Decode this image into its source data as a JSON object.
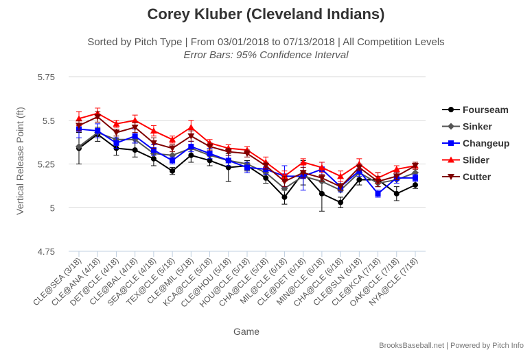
{
  "title": "Corey Kluber (Cleveland Indians)",
  "subtitle_line1": "Sorted by Pitch Type | From 03/01/2018 to 07/13/2018 | All Competition Levels",
  "subtitle_line2": "Error Bars: 95% Confidence Interval",
  "credit": "BrooksBaseball.net | Powered by Pitch Info",
  "chart_data": {
    "type": "line",
    "title": "Corey Kluber (Cleveland Indians)",
    "xlabel": "Game",
    "ylabel": "Vertical Release Point (ft)",
    "ylim": [
      4.75,
      5.75
    ],
    "yticks": [
      "4.75",
      "5",
      "5.25",
      "5.5",
      "5.75"
    ],
    "ytick_values": [
      4.75,
      5.0,
      5.25,
      5.5,
      5.75
    ],
    "grid": "horizontal",
    "legend_position": "right",
    "categories": [
      "CLE@SEA (3/18)",
      "CLE@ANA (4/18)",
      "DET@CLE (4/18)",
      "CLE@BAL (4/18)",
      "SEA@CLE (4/18)",
      "TEX@CLE (5/18)",
      "CLE@MIL (5/18)",
      "KCA@CLE (5/18)",
      "CLE@HOU (5/18)",
      "HOU@CLE (5/18)",
      "CHA@CLE (5/18)",
      "MIL@CLE (6/18)",
      "CLE@DET (6/18)",
      "MIN@CLE (6/18)",
      "CHA@CLE (6/18)",
      "CLE@SLN (6/18)",
      "CLE@KCA (7/18)",
      "OAK@CLE (7/18)",
      "NYA@CLE (7/18)"
    ],
    "series": [
      {
        "name": "Fourseam",
        "color": "#000000",
        "marker": "circle",
        "values": [
          5.34,
          5.42,
          5.34,
          5.33,
          5.28,
          5.21,
          5.3,
          5.27,
          5.23,
          5.24,
          5.17,
          5.06,
          5.2,
          5.08,
          5.03,
          5.16,
          5.16,
          5.08,
          5.13
        ],
        "err": [
          0.09,
          0.04,
          0.04,
          0.04,
          0.04,
          0.02,
          0.04,
          0.03,
          0.08,
          0.03,
          0.03,
          0.04,
          0.07,
          0.1,
          0.03,
          0.03,
          0.04,
          0.04,
          0.02
        ]
      },
      {
        "name": "Sinker",
        "color": "#555555",
        "marker": "diamond",
        "values": [
          5.35,
          5.43,
          5.39,
          5.39,
          5.31,
          5.3,
          5.34,
          5.3,
          5.27,
          5.25,
          5.2,
          5.11,
          5.18,
          5.15,
          5.1,
          5.2,
          5.14,
          5.16,
          5.2
        ]
      },
      {
        "name": "Changeup",
        "color": "#0000ff",
        "marker": "square",
        "values": [
          5.45,
          5.44,
          5.37,
          5.41,
          5.33,
          5.27,
          5.35,
          5.31,
          5.27,
          5.23,
          5.22,
          5.18,
          5.18,
          5.22,
          5.12,
          5.21,
          5.08,
          5.17,
          5.17
        ],
        "err": [
          0.05,
          0.04,
          0.03,
          0.04,
          0.03,
          0.02,
          0.03,
          0.03,
          0.03,
          0.03,
          0.03,
          0.06,
          0.08,
          0.04,
          0.03,
          0.03,
          0.02,
          0.03,
          0.02
        ]
      },
      {
        "name": "Slider",
        "color": "#ff0000",
        "marker": "triangle",
        "values": [
          5.51,
          5.54,
          5.48,
          5.5,
          5.44,
          5.39,
          5.46,
          5.37,
          5.34,
          5.33,
          5.26,
          5.18,
          5.26,
          5.23,
          5.18,
          5.25,
          5.17,
          5.22,
          5.24
        ],
        "err": [
          0.04,
          0.03,
          0.02,
          0.03,
          0.03,
          0.02,
          0.04,
          0.02,
          0.02,
          0.02,
          0.03,
          0.03,
          0.02,
          0.03,
          0.03,
          0.03,
          0.03,
          0.02,
          0.02
        ]
      },
      {
        "name": "Cutter",
        "color": "#800000",
        "marker": "triangle-down",
        "values": [
          5.47,
          5.52,
          5.43,
          5.46,
          5.37,
          5.34,
          5.41,
          5.35,
          5.32,
          5.31,
          5.24,
          5.15,
          5.2,
          5.17,
          5.12,
          5.23,
          5.15,
          5.18,
          5.24
        ],
        "err": [
          0.03,
          0.03,
          0.02,
          0.03,
          0.03,
          0.02,
          0.03,
          0.02,
          0.02,
          0.02,
          0.02,
          0.03,
          0.03,
          0.02,
          0.02,
          0.02,
          0.03,
          0.02,
          0.02
        ]
      }
    ]
  }
}
